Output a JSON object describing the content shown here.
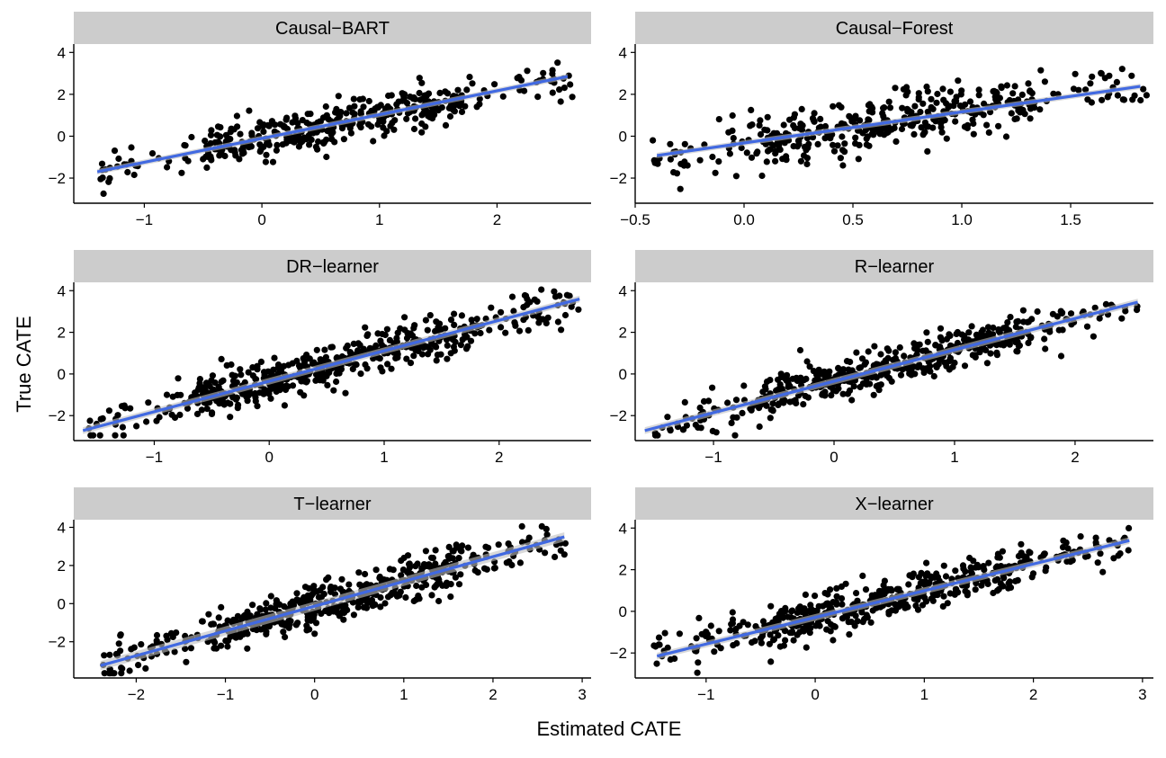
{
  "colors": {
    "strip_fill": "#cccccc",
    "point": "#000000",
    "fit_line": "#4169e1",
    "confidence_band": "#c0c0c0",
    "axis": "#000000"
  },
  "figure": {
    "xlabel": "Estimated CATE",
    "ylabel": "True CATE"
  },
  "chart_data": [
    {
      "type": "scatter",
      "title": "Causal−BART",
      "xlim": [
        -1.6,
        2.8
      ],
      "ylim": [
        -3.2,
        4.4
      ],
      "x_ticks": [
        -1,
        0,
        1,
        2
      ],
      "x_tick_labels": [
        "−1",
        "0",
        "1",
        "2"
      ],
      "y_ticks": [
        -2,
        0,
        2,
        4
      ],
      "y_tick_labels": [
        "−2",
        "0",
        "2",
        "4"
      ],
      "fit_line": {
        "x": [
          -1.4,
          2.6
        ],
        "y": [
          -1.7,
          2.85
        ],
        "band_halfwidth": 0.08
      },
      "point_gen": {
        "n": 400,
        "x_min": -1.45,
        "x_max": 2.65,
        "intercept": -0.11,
        "slope": 1.14,
        "noise_sd": 0.5,
        "seed": 11
      }
    },
    {
      "type": "scatter",
      "title": "Causal−Forest",
      "xlim": [
        -0.5,
        1.88
      ],
      "ylim": [
        -3.2,
        4.4
      ],
      "x_ticks": [
        -0.5,
        0,
        0.5,
        1,
        1.5
      ],
      "x_tick_labels": [
        "−0.5",
        "0.0",
        "0.5",
        "1.0",
        "1.5"
      ],
      "y_ticks": [
        -2,
        0,
        2,
        4
      ],
      "y_tick_labels": [
        "−2",
        "0",
        "2",
        "4"
      ],
      "fit_line": {
        "x": [
          -0.4,
          1.82
        ],
        "y": [
          -0.92,
          2.38
        ],
        "band_halfwidth": 0.08
      },
      "point_gen": {
        "n": 400,
        "x_min": -0.42,
        "x_max": 1.85,
        "intercept": -0.33,
        "slope": 1.48,
        "noise_sd": 0.62,
        "seed": 22
      }
    },
    {
      "type": "scatter",
      "title": "DR−learner",
      "xlim": [
        -1.7,
        2.8
      ],
      "ylim": [
        -3.2,
        4.4
      ],
      "x_ticks": [
        -1,
        0,
        1,
        2
      ],
      "x_tick_labels": [
        "−1",
        "0",
        "1",
        "2"
      ],
      "y_ticks": [
        -2,
        0,
        2,
        4
      ],
      "y_tick_labels": [
        "−2",
        "0",
        "2",
        "4"
      ],
      "fit_line": {
        "x": [
          -1.62,
          2.7
        ],
        "y": [
          -2.72,
          3.6
        ],
        "band_halfwidth": 0.1
      },
      "point_gen": {
        "n": 500,
        "x_min": -1.6,
        "x_max": 2.7,
        "intercept": -0.35,
        "slope": 1.46,
        "noise_sd": 0.5,
        "seed": 33
      }
    },
    {
      "type": "scatter",
      "title": "R−learner",
      "xlim": [
        -1.65,
        2.65
      ],
      "ylim": [
        -3.2,
        4.4
      ],
      "x_ticks": [
        -1,
        0,
        1,
        2
      ],
      "x_tick_labels": [
        "−1",
        "0",
        "1",
        "2"
      ],
      "y_ticks": [
        -2,
        0,
        2,
        4
      ],
      "y_tick_labels": [
        "−2",
        "0",
        "2",
        "4"
      ],
      "fit_line": {
        "x": [
          -1.57,
          2.52
        ],
        "y": [
          -2.72,
          3.45
        ],
        "band_halfwidth": 0.1
      },
      "point_gen": {
        "n": 500,
        "x_min": -1.57,
        "x_max": 2.55,
        "intercept": -0.35,
        "slope": 1.51,
        "noise_sd": 0.5,
        "seed": 44
      }
    },
    {
      "type": "scatter",
      "title": "T−learner",
      "xlim": [
        -2.7,
        3.1
      ],
      "ylim": [
        -3.9,
        4.4
      ],
      "x_ticks": [
        -2,
        -1,
        0,
        1,
        2,
        3
      ],
      "x_tick_labels": [
        "−2",
        "−1",
        "0",
        "1",
        "2",
        "3"
      ],
      "y_ticks": [
        -2,
        0,
        2,
        4
      ],
      "y_tick_labels": [
        "−2",
        "0",
        "2",
        "4"
      ],
      "fit_line": {
        "x": [
          -2.4,
          2.8
        ],
        "y": [
          -3.25,
          3.5
        ],
        "band_halfwidth": 0.15
      },
      "point_gen": {
        "n": 500,
        "x_min": -2.38,
        "x_max": 2.82,
        "intercept": -0.12,
        "slope": 1.3,
        "noise_sd": 0.55,
        "seed": 55
      }
    },
    {
      "type": "scatter",
      "title": "X−learner",
      "xlim": [
        -1.65,
        3.1
      ],
      "ylim": [
        -3.2,
        4.4
      ],
      "x_ticks": [
        -1,
        0,
        1,
        2,
        3
      ],
      "x_tick_labels": [
        "−1",
        "0",
        "1",
        "2",
        "3"
      ],
      "y_ticks": [
        -2,
        0,
        2,
        4
      ],
      "y_tick_labels": [
        "−2",
        "0",
        "2",
        "4"
      ],
      "fit_line": {
        "x": [
          -1.45,
          2.88
        ],
        "y": [
          -2.15,
          3.4
        ],
        "band_halfwidth": 0.1
      },
      "point_gen": {
        "n": 500,
        "x_min": -1.48,
        "x_max": 2.9,
        "intercept": -0.29,
        "slope": 1.28,
        "noise_sd": 0.5,
        "seed": 66
      }
    }
  ]
}
